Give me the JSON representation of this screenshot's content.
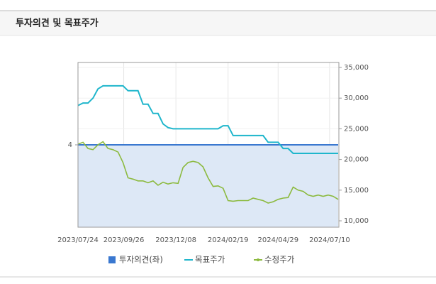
{
  "chart_data": {
    "type": "line",
    "title": "투자의견 및 목표주가",
    "x": [
      "2023/07/24",
      "2023/07/31",
      "2023/08/07",
      "2023/08/14",
      "2023/08/21",
      "2023/08/28",
      "2023/09/04",
      "2023/09/11",
      "2023/09/18",
      "2023/09/25",
      "2023/10/02",
      "2023/10/09",
      "2023/10/16",
      "2023/10/23",
      "2023/10/30",
      "2023/11/06",
      "2023/11/13",
      "2023/11/20",
      "2023/11/27",
      "2023/12/04",
      "2023/12/11",
      "2023/12/18",
      "2023/12/25",
      "2024/01/01",
      "2024/01/08",
      "2024/01/15",
      "2024/01/22",
      "2024/01/29",
      "2024/02/05",
      "2024/02/12",
      "2024/02/19",
      "2024/02/26",
      "2024/03/04",
      "2024/03/11",
      "2024/03/18",
      "2024/03/25",
      "2024/04/01",
      "2024/04/08",
      "2024/04/15",
      "2024/04/22",
      "2024/04/29",
      "2024/05/06",
      "2024/05/13",
      "2024/05/20",
      "2024/05/27",
      "2024/06/03",
      "2024/06/10",
      "2024/06/17",
      "2024/06/24",
      "2024/07/01",
      "2024/07/08",
      "2024/07/15",
      "2024/07/22"
    ],
    "xlim": [
      "2023/07/24",
      "2024/07/23"
    ],
    "xticks": [
      "2023/07/24",
      "2023/09/26",
      "2023/12/08",
      "2024/02/19",
      "2024/04/29",
      "2024/07/10"
    ],
    "ylim": [
      0,
      8
    ],
    "yticks": [
      4
    ],
    "y2lim": [
      8960,
      35810
    ],
    "y2ticks": [
      {
        "value": 10000,
        "label": "10,000"
      },
      {
        "value": 15000,
        "label": "15,000"
      },
      {
        "value": 20000,
        "label": "20,000"
      },
      {
        "value": 25000,
        "label": "25,000"
      },
      {
        "value": 30000,
        "label": "30,000"
      },
      {
        "value": 35000,
        "label": "35,000"
      }
    ],
    "grid": true,
    "series": [
      {
        "name": "투자의견(좌)",
        "color": "#3a78d0",
        "fill": "#dde8f6",
        "axis": "y",
        "values": [
          4,
          4,
          4,
          4,
          4,
          4,
          4,
          4,
          4,
          4,
          4,
          4,
          4,
          4,
          4,
          4,
          4,
          4,
          4,
          4,
          4,
          4,
          4,
          4,
          4,
          4,
          4,
          4,
          4,
          4,
          4,
          4,
          4,
          4,
          4,
          4,
          4,
          4,
          4,
          4,
          4,
          4,
          4,
          4,
          4,
          4,
          4,
          4,
          4,
          4,
          4,
          4,
          4
        ]
      },
      {
        "name": "목표주가",
        "color": "#1fb6cc",
        "axis": "y2",
        "values": [
          28800,
          29200,
          29200,
          30000,
          31500,
          32000,
          32000,
          32000,
          32000,
          32000,
          31200,
          31200,
          31200,
          29000,
          29000,
          27500,
          27500,
          25800,
          25200,
          25000,
          25000,
          25000,
          25000,
          25000,
          25000,
          25000,
          25000,
          25000,
          25000,
          25500,
          25500,
          23900,
          23900,
          23900,
          23900,
          23900,
          23900,
          23900,
          22800,
          22800,
          22800,
          21800,
          21800,
          21000,
          21000,
          21000,
          21000,
          21000,
          21000,
          21000,
          21000,
          21000,
          21000
        ]
      },
      {
        "name": "수정주가",
        "color": "#8cba3f",
        "axis": "y2",
        "values": [
          22500,
          22800,
          21800,
          21600,
          22400,
          22900,
          21800,
          21600,
          21200,
          19500,
          17000,
          16800,
          16500,
          16500,
          16200,
          16500,
          15800,
          16300,
          16000,
          16200,
          16100,
          18700,
          19500,
          19700,
          19500,
          18800,
          17000,
          15600,
          15700,
          15300,
          13300,
          13200,
          13300,
          13300,
          13300,
          13700,
          13500,
          13300,
          12900,
          13100,
          13500,
          13700,
          13800,
          15500,
          15000,
          14800,
          14200,
          14000,
          14200,
          14000,
          14200,
          14000,
          13500
        ]
      }
    ]
  }
}
